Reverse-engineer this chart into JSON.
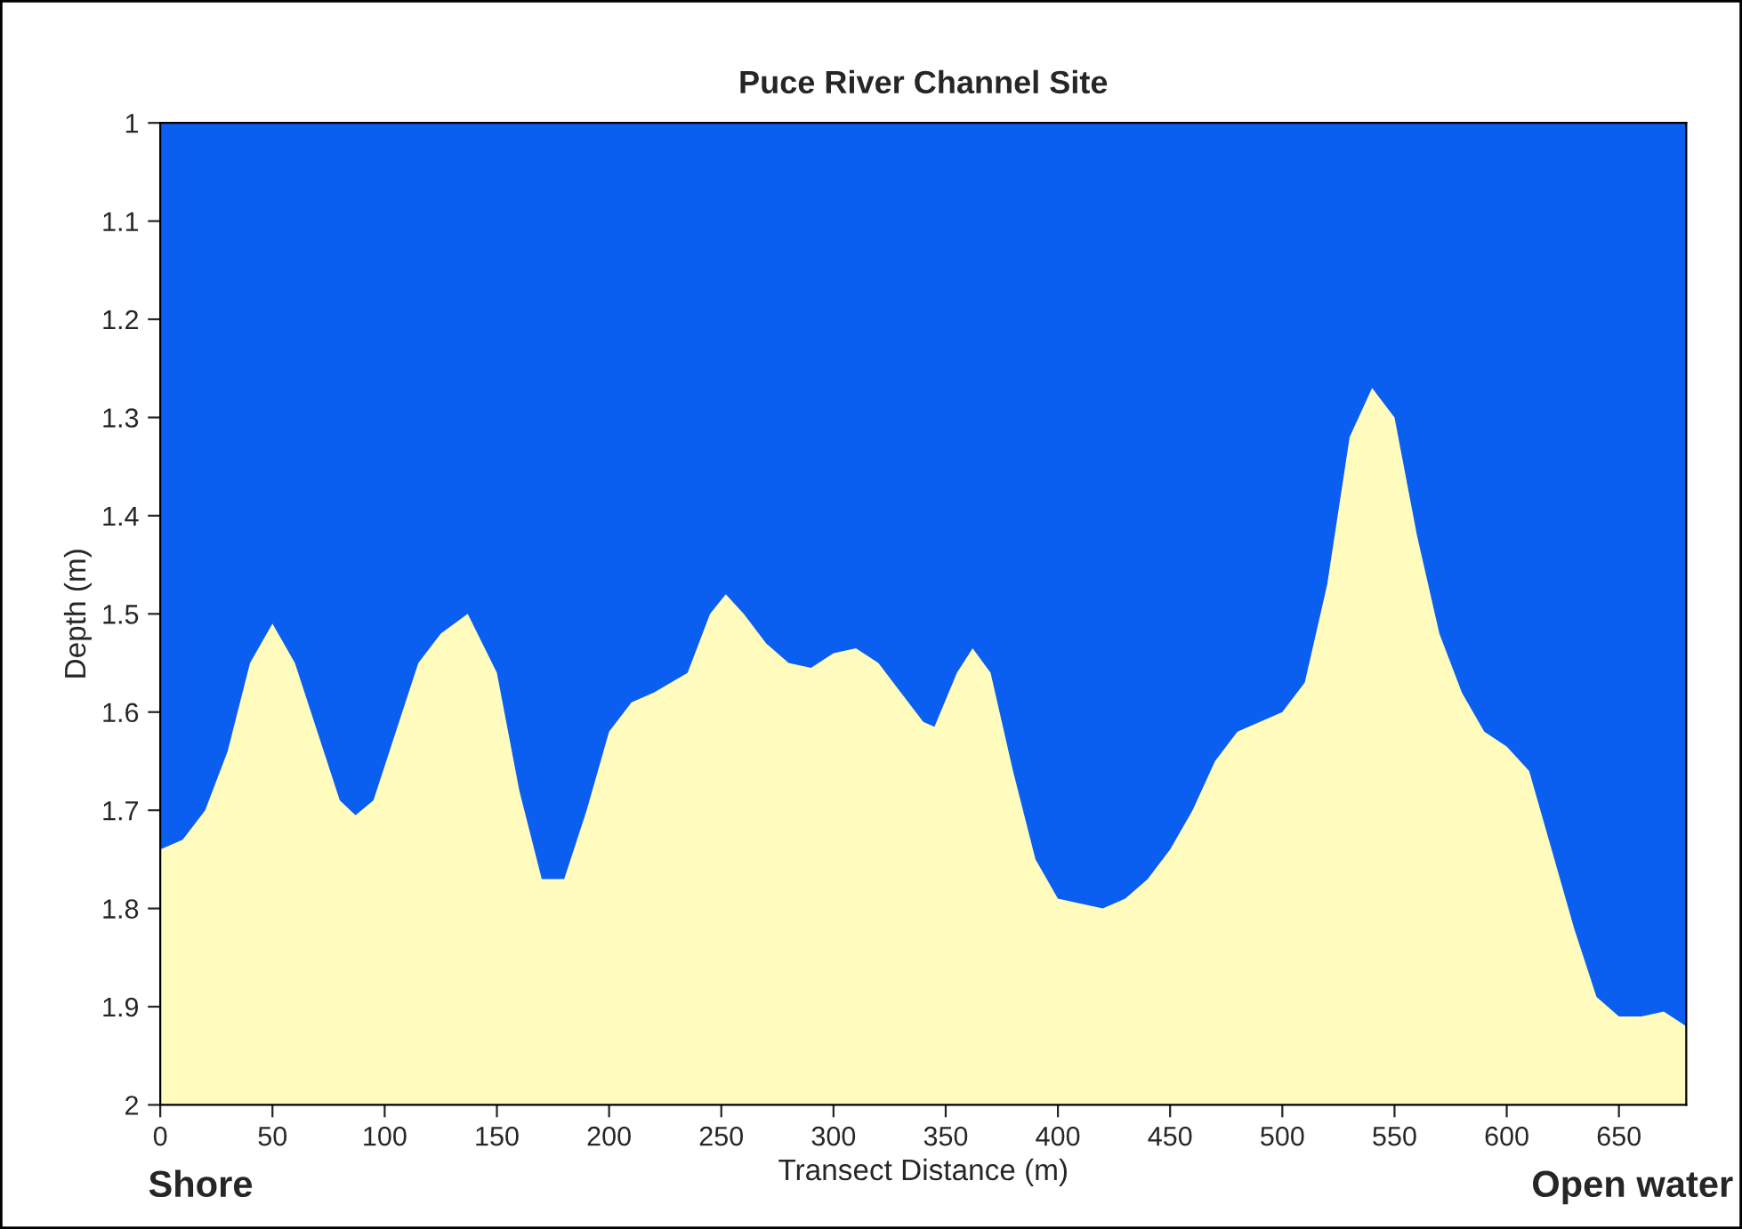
{
  "chart_data": {
    "type": "area",
    "title": "Puce River Channel Site",
    "xlabel": "Transect Distance (m)",
    "ylabel": "Depth (m)",
    "x": [
      0,
      10,
      20,
      30,
      40,
      50,
      60,
      70,
      80,
      87,
      95,
      105,
      115,
      125,
      137,
      150,
      160,
      170,
      180,
      190,
      200,
      210,
      220,
      235,
      245,
      252,
      260,
      270,
      280,
      290,
      300,
      310,
      320,
      330,
      340,
      345,
      355,
      362,
      370,
      380,
      390,
      400,
      420,
      430,
      440,
      450,
      460,
      470,
      480,
      500,
      510,
      520,
      530,
      540,
      550,
      560,
      570,
      580,
      590,
      600,
      610,
      620,
      630,
      640,
      650,
      660,
      670,
      680
    ],
    "series": [
      {
        "color": "#0a5ef0",
        "values": [
          1.74,
          1.73,
          1.7,
          1.64,
          1.55,
          1.51,
          1.55,
          1.62,
          1.69,
          1.705,
          1.69,
          1.62,
          1.55,
          1.52,
          1.5,
          1.56,
          1.68,
          1.77,
          1.77,
          1.7,
          1.62,
          1.59,
          1.58,
          1.56,
          1.5,
          1.48,
          1.5,
          1.53,
          1.55,
          1.555,
          1.54,
          1.535,
          1.55,
          1.58,
          1.61,
          1.615,
          1.56,
          1.535,
          1.56,
          1.66,
          1.75,
          1.79,
          1.8,
          1.79,
          1.77,
          1.74,
          1.7,
          1.65,
          1.62,
          1.6,
          1.57,
          1.47,
          1.32,
          1.27,
          1.3,
          1.42,
          1.52,
          1.58,
          1.62,
          1.635,
          1.66,
          1.74,
          1.82,
          1.89,
          1.91,
          1.91,
          1.905,
          1.92
        ]
      }
    ],
    "xlim": [
      0,
      680
    ],
    "xticks": [
      0,
      50,
      100,
      150,
      200,
      250,
      300,
      350,
      400,
      450,
      500,
      550,
      600,
      650
    ],
    "ylim": [
      2,
      1
    ],
    "yticks": [
      1,
      1.1,
      1.2,
      1.3,
      1.4,
      1.5,
      1.6,
      1.7,
      1.8,
      1.9,
      2
    ],
    "bands": [
      {
        "axis": "y",
        "from": 1,
        "to": 2,
        "color": "#fffcbe"
      }
    ],
    "grid": false,
    "annotations": [
      "Shore",
      "Open water"
    ]
  }
}
